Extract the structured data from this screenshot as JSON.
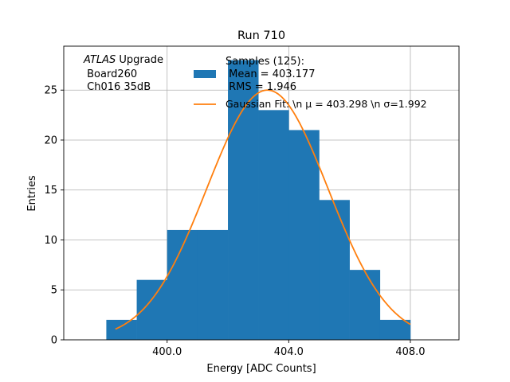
{
  "chart_data": {
    "type": "bar",
    "title": "Run 710",
    "xlabel": "Energy [ADC Counts]",
    "ylabel": "Entries",
    "xlim": [
      396.6,
      409.6
    ],
    "ylim": [
      0,
      29.4
    ],
    "grid": true,
    "x_ticks": [
      400.0,
      404.0,
      408.0
    ],
    "x_tick_labels": [
      "400.0",
      "404.0",
      "408.0"
    ],
    "y_ticks": [
      0,
      5,
      10,
      15,
      20,
      25
    ],
    "y_tick_labels": [
      "0",
      "5",
      "10",
      "15",
      "20",
      "25"
    ],
    "histogram": {
      "bin_edges": [
        398,
        399,
        400,
        401,
        402,
        403,
        404,
        405,
        406,
        407,
        408
      ],
      "counts": [
        2,
        6,
        11,
        11,
        28,
        23,
        21,
        14,
        7,
        2
      ],
      "color": "#1f77b4"
    },
    "fit": {
      "type": "gaussian",
      "mu": 403.298,
      "sigma": 1.992,
      "amplitude": 25.0,
      "x_range": [
        398.3,
        408.0
      ],
      "color": "#ff7f0e"
    },
    "annotation": {
      "atlas_italic": "ATLAS",
      "atlas_rest": " Upgrade",
      "line2": " Board260",
      "line3": " Ch016 35dB"
    },
    "legend": {
      "position": "top-right",
      "samples": {
        "line1": "Samples (125):",
        "line2": " Mean = 403.177",
        "line3": " RMS = 1.946"
      },
      "fit_label": "Gaussian Fit: \\n μ = 403.298 \\n σ=1.992"
    }
  }
}
